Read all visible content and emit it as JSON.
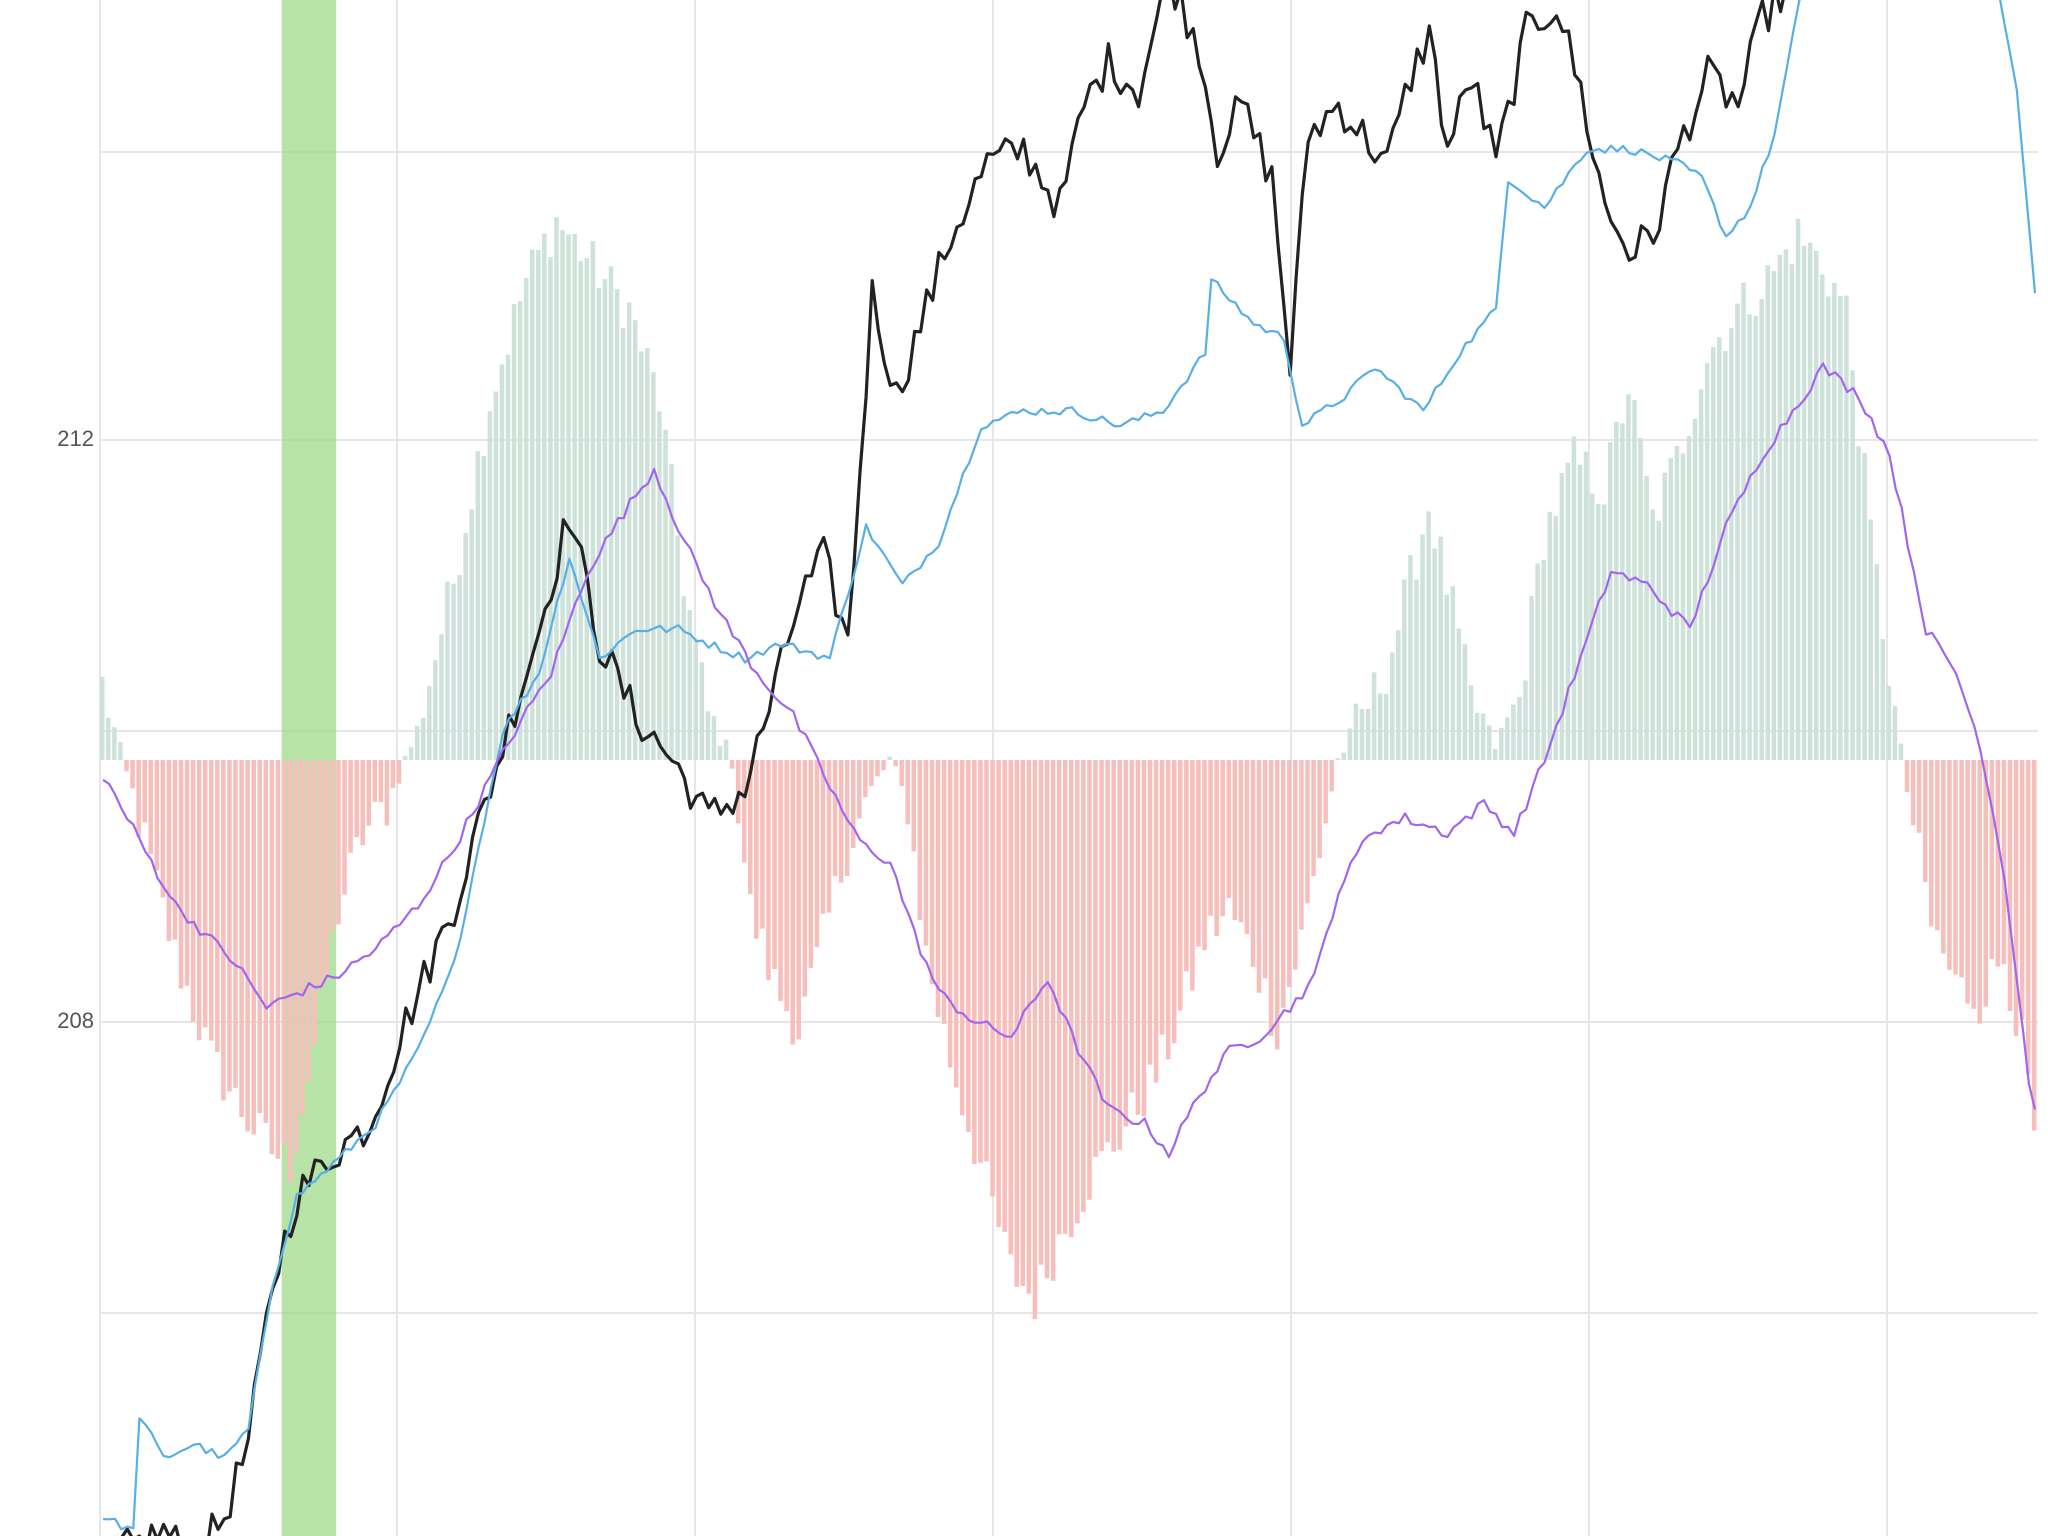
{
  "chart_data": {
    "type": "line",
    "title": "",
    "xlabel": "",
    "ylabel": "",
    "y_tick_labels": [
      "212",
      "208"
    ],
    "y_ticks": [
      212,
      208
    ],
    "ylim": [
      204.5,
      215.3
    ],
    "grid": true,
    "legend": "none",
    "num_bars": 320,
    "highlight_band": {
      "from_index": 30,
      "to_index": 39,
      "color": "#9fd98a"
    },
    "colors": {
      "price": "#222222",
      "blue": "#58aee6",
      "purple": "#a066f0",
      "hist_positive": "#cfe2da",
      "hist_negative": "#f6bfbb",
      "grid": "#e6e6e6",
      "tick_text": "#555555"
    },
    "series": [
      {
        "key": "price",
        "anchors": [
          [
            0,
            204.3
          ],
          [
            5,
            204.4
          ],
          [
            10,
            204.5
          ],
          [
            15,
            204.3
          ],
          [
            20,
            204.6
          ],
          [
            24,
            205.1
          ],
          [
            28,
            206.2
          ],
          [
            32,
            206.8
          ],
          [
            38,
            207.1
          ],
          [
            44,
            207.3
          ],
          [
            50,
            208.0
          ],
          [
            58,
            208.8
          ],
          [
            66,
            209.9
          ],
          [
            72,
            210.7
          ],
          [
            77,
            211.5
          ],
          [
            82,
            210.6
          ],
          [
            88,
            210.1
          ],
          [
            94,
            209.8
          ],
          [
            100,
            209.4
          ],
          [
            106,
            209.6
          ],
          [
            111,
            210.3
          ],
          [
            115,
            210.9
          ],
          [
            119,
            211.2
          ],
          [
            123,
            210.6
          ],
          [
            127,
            213.0
          ],
          [
            131,
            212.3
          ],
          [
            135,
            212.8
          ],
          [
            140,
            213.4
          ],
          [
            146,
            213.9
          ],
          [
            152,
            214.0
          ],
          [
            158,
            213.6
          ],
          [
            162,
            214.3
          ],
          [
            166,
            214.6
          ],
          [
            171,
            214.4
          ],
          [
            176,
            215.2
          ],
          [
            181,
            214.7
          ],
          [
            184,
            214.0
          ],
          [
            188,
            214.3
          ],
          [
            193,
            213.8
          ],
          [
            196,
            212.5
          ],
          [
            199,
            214.1
          ],
          [
            204,
            214.3
          ],
          [
            208,
            214.1
          ],
          [
            212,
            213.9
          ],
          [
            216,
            214.5
          ],
          [
            219,
            214.8
          ],
          [
            222,
            214.0
          ],
          [
            226,
            214.5
          ],
          [
            230,
            213.9
          ],
          [
            235,
            214.8
          ],
          [
            240,
            215.0
          ],
          [
            244,
            214.4
          ],
          [
            248,
            213.6
          ],
          [
            252,
            213.3
          ],
          [
            256,
            213.4
          ],
          [
            260,
            214.0
          ],
          [
            265,
            214.5
          ],
          [
            270,
            214.3
          ],
          [
            274,
            214.9
          ],
          [
            278,
            215.1
          ],
          [
            283,
            215.3
          ],
          [
            288,
            215.5
          ],
          [
            293,
            215.2
          ],
          [
            298,
            215.6
          ],
          [
            304,
            215.4
          ],
          [
            310,
            215.8
          ],
          [
            319,
            215.7
          ]
        ]
      },
      {
        "key": "blue",
        "anchors": [
          [
            0,
            204.6
          ],
          [
            5,
            204.5
          ],
          [
            6,
            205.3
          ],
          [
            10,
            205.0
          ],
          [
            15,
            205.1
          ],
          [
            20,
            205.0
          ],
          [
            24,
            205.2
          ],
          [
            28,
            206.2
          ],
          [
            32,
            206.8
          ],
          [
            40,
            207.1
          ],
          [
            45,
            207.3
          ],
          [
            52,
            207.8
          ],
          [
            58,
            208.4
          ],
          [
            66,
            210.0
          ],
          [
            72,
            210.4
          ],
          [
            77,
            211.2
          ],
          [
            82,
            210.5
          ],
          [
            88,
            210.7
          ],
          [
            95,
            210.7
          ],
          [
            100,
            210.6
          ],
          [
            106,
            210.5
          ],
          [
            112,
            210.6
          ],
          [
            120,
            210.5
          ],
          [
            126,
            211.4
          ],
          [
            132,
            211.0
          ],
          [
            138,
            211.3
          ],
          [
            145,
            212.1
          ],
          [
            152,
            212.2
          ],
          [
            160,
            212.2
          ],
          [
            168,
            212.1
          ],
          [
            175,
            212.2
          ],
          [
            182,
            212.6
          ],
          [
            183,
            213.1
          ],
          [
            190,
            212.8
          ],
          [
            195,
            212.7
          ],
          [
            198,
            212.1
          ],
          [
            205,
            212.3
          ],
          [
            210,
            212.5
          ],
          [
            218,
            212.2
          ],
          [
            224,
            212.6
          ],
          [
            230,
            212.9
          ],
          [
            232,
            213.8
          ],
          [
            238,
            213.6
          ],
          [
            245,
            214.0
          ],
          [
            252,
            214.0
          ],
          [
            260,
            213.9
          ],
          [
            264,
            213.8
          ],
          [
            268,
            213.4
          ],
          [
            272,
            213.6
          ],
          [
            276,
            214.1
          ],
          [
            281,
            215.2
          ],
          [
            286,
            215.6
          ],
          [
            291,
            215.5
          ],
          [
            296,
            215.6
          ],
          [
            301,
            215.6
          ],
          [
            307,
            215.4
          ],
          [
            312,
            215.3
          ],
          [
            316,
            214.4
          ],
          [
            319,
            213.0
          ]
        ]
      },
      {
        "key": "purple",
        "anchors": [
          [
            0,
            209.7
          ],
          [
            4,
            209.4
          ],
          [
            8,
            209.1
          ],
          [
            12,
            208.8
          ],
          [
            17,
            208.6
          ],
          [
            22,
            208.4
          ],
          [
            27,
            208.1
          ],
          [
            32,
            208.2
          ],
          [
            38,
            208.3
          ],
          [
            45,
            208.5
          ],
          [
            52,
            208.8
          ],
          [
            58,
            209.2
          ],
          [
            63,
            209.6
          ],
          [
            68,
            210.0
          ],
          [
            74,
            210.4
          ],
          [
            80,
            211.1
          ],
          [
            86,
            211.5
          ],
          [
            91,
            211.8
          ],
          [
            96,
            211.3
          ],
          [
            102,
            210.8
          ],
          [
            108,
            210.4
          ],
          [
            114,
            210.1
          ],
          [
            119,
            209.7
          ],
          [
            124,
            209.3
          ],
          [
            126,
            209.2
          ],
          [
            130,
            209.1
          ],
          [
            134,
            208.6
          ],
          [
            138,
            208.2
          ],
          [
            144,
            208.0
          ],
          [
            150,
            207.9
          ],
          [
            156,
            208.3
          ],
          [
            160,
            207.9
          ],
          [
            166,
            207.4
          ],
          [
            172,
            207.3
          ],
          [
            176,
            207.1
          ],
          [
            181,
            207.5
          ],
          [
            186,
            207.8
          ],
          [
            191,
            207.9
          ],
          [
            196,
            208.1
          ],
          [
            200,
            208.3
          ],
          [
            204,
            208.9
          ],
          [
            209,
            209.3
          ],
          [
            215,
            209.4
          ],
          [
            222,
            209.3
          ],
          [
            228,
            209.5
          ],
          [
            233,
            209.3
          ],
          [
            238,
            209.8
          ],
          [
            244,
            210.5
          ],
          [
            249,
            211.1
          ],
          [
            255,
            211.0
          ],
          [
            262,
            210.7
          ],
          [
            268,
            211.4
          ],
          [
            274,
            211.9
          ],
          [
            279,
            212.2
          ],
          [
            284,
            212.5
          ],
          [
            290,
            212.3
          ],
          [
            295,
            211.9
          ],
          [
            301,
            210.7
          ],
          [
            306,
            210.4
          ],
          [
            310,
            209.9
          ],
          [
            314,
            209.0
          ],
          [
            318,
            207.6
          ],
          [
            319,
            207.4
          ]
        ]
      }
    ],
    "histogram_anchors": [
      [
        0,
        0.5
      ],
      [
        6,
        -0.4
      ],
      [
        12,
        -1.3
      ],
      [
        18,
        -2.0
      ],
      [
        24,
        -2.4
      ],
      [
        28,
        -2.6
      ],
      [
        31,
        -2.7
      ],
      [
        35,
        -1.9
      ],
      [
        39,
        -1.0
      ],
      [
        43,
        -0.5
      ],
      [
        47,
        -0.3
      ],
      [
        52,
        0.2
      ],
      [
        58,
        1.2
      ],
      [
        64,
        2.4
      ],
      [
        70,
        3.2
      ],
      [
        75,
        3.6
      ],
      [
        81,
        3.3
      ],
      [
        87,
        3.0
      ],
      [
        92,
        2.4
      ],
      [
        96,
        1.2
      ],
      [
        100,
        0.3
      ],
      [
        104,
        0.0
      ],
      [
        107,
        -1.0
      ],
      [
        111,
        -1.5
      ],
      [
        115,
        -1.8
      ],
      [
        119,
        -1.2
      ],
      [
        123,
        -0.6
      ],
      [
        127,
        -0.2
      ],
      [
        130,
        0.0
      ],
      [
        133,
        -0.3
      ],
      [
        136,
        -1.3
      ],
      [
        140,
        -2.0
      ],
      [
        145,
        -2.7
      ],
      [
        150,
        -3.4
      ],
      [
        154,
        -3.6
      ],
      [
        158,
        -3.2
      ],
      [
        163,
        -2.8
      ],
      [
        168,
        -2.5
      ],
      [
        174,
        -2.1
      ],
      [
        178,
        -1.7
      ],
      [
        182,
        -1.2
      ],
      [
        186,
        -1.0
      ],
      [
        190,
        -1.3
      ],
      [
        194,
        -1.8
      ],
      [
        198,
        -1.2
      ],
      [
        201,
        -0.6
      ],
      [
        204,
        0.0
      ],
      [
        208,
        0.3
      ],
      [
        212,
        0.6
      ],
      [
        216,
        1.2
      ],
      [
        219,
        1.7
      ],
      [
        223,
        1.0
      ],
      [
        226,
        0.4
      ],
      [
        230,
        0.1
      ],
      [
        234,
        0.4
      ],
      [
        238,
        1.5
      ],
      [
        243,
        2.0
      ],
      [
        248,
        1.8
      ],
      [
        252,
        2.5
      ],
      [
        256,
        1.6
      ],
      [
        260,
        2.0
      ],
      [
        265,
        2.7
      ],
      [
        270,
        3.0
      ],
      [
        275,
        3.2
      ],
      [
        280,
        3.5
      ],
      [
        284,
        3.3
      ],
      [
        288,
        3.0
      ],
      [
        292,
        1.5
      ],
      [
        296,
        0.3
      ],
      [
        298,
        -0.2
      ],
      [
        302,
        -1.1
      ],
      [
        306,
        -1.5
      ],
      [
        310,
        -1.6
      ],
      [
        314,
        -1.3
      ],
      [
        317,
        -1.9
      ],
      [
        319,
        -2.5
      ]
    ]
  }
}
